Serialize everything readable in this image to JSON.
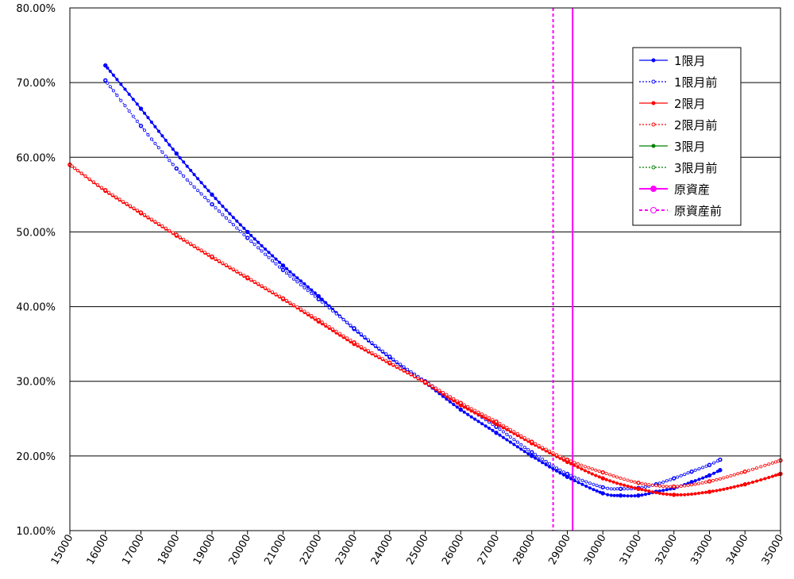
{
  "chart_data": {
    "type": "line",
    "xlim": [
      15000,
      35000
    ],
    "ylim": [
      0.1,
      0.8
    ],
    "x_ticks": [
      15000,
      16000,
      17000,
      18000,
      19000,
      20000,
      21000,
      22000,
      23000,
      24000,
      25000,
      26000,
      27000,
      28000,
      29000,
      30000,
      31000,
      32000,
      33000,
      34000,
      35000
    ],
    "y_ticks": [
      0.1,
      0.2,
      0.3,
      0.4,
      0.5,
      0.6,
      0.7,
      0.8
    ],
    "y_tick_labels": [
      "10.00%",
      "20.00%",
      "30.00%",
      "40.00%",
      "50.00%",
      "60.00%",
      "70.00%",
      "80.00%"
    ],
    "grid": "horizontal",
    "legend_position": "top-right",
    "series": [
      {
        "name": "1限月",
        "color": "#0000ff",
        "style": "solid-filled-marker",
        "x": [
          16000,
          17000,
          18000,
          19000,
          20000,
          21000,
          22000,
          23000,
          24000,
          25000,
          26000,
          27000,
          28000,
          29000,
          30000,
          30500,
          31000,
          31500,
          32000,
          32500,
          33000,
          33300
        ],
        "y": [
          0.723,
          0.665,
          0.605,
          0.55,
          0.5,
          0.455,
          0.414,
          0.37,
          0.332,
          0.298,
          0.262,
          0.231,
          0.2,
          0.172,
          0.15,
          0.147,
          0.147,
          0.152,
          0.157,
          0.165,
          0.174,
          0.181
        ]
      },
      {
        "name": "1限月前",
        "color": "#0000ff",
        "style": "dotted-open-marker",
        "x": [
          16000,
          17000,
          18000,
          19000,
          20000,
          21000,
          22000,
          23000,
          24000,
          25000,
          26000,
          27000,
          28000,
          29000,
          30000,
          30500,
          31000,
          31500,
          32000,
          32500,
          33000,
          33300
        ],
        "y": [
          0.703,
          0.642,
          0.585,
          0.537,
          0.492,
          0.449,
          0.41,
          0.371,
          0.333,
          0.3,
          0.27,
          0.239,
          0.205,
          0.176,
          0.158,
          0.156,
          0.157,
          0.162,
          0.17,
          0.179,
          0.188,
          0.195
        ]
      },
      {
        "name": "2限月",
        "color": "#ff0000",
        "style": "solid-filled-marker",
        "x": [
          15000,
          16000,
          17000,
          18000,
          19000,
          20000,
          21000,
          22000,
          23000,
          24000,
          25000,
          26000,
          27000,
          28000,
          29000,
          30000,
          31000,
          32000,
          33000,
          34000,
          35000
        ],
        "y": [
          0.59,
          0.555,
          0.525,
          0.495,
          0.466,
          0.438,
          0.41,
          0.38,
          0.35,
          0.324,
          0.298,
          0.268,
          0.243,
          0.217,
          0.192,
          0.17,
          0.156,
          0.148,
          0.152,
          0.162,
          0.176
        ]
      },
      {
        "name": "2限月前",
        "color": "#ff0000",
        "style": "dotted-open-marker",
        "x": [
          15000,
          16000,
          17000,
          18000,
          19000,
          20000,
          21000,
          22000,
          23000,
          24000,
          25000,
          26000,
          27000,
          28000,
          29000,
          30000,
          31000,
          32000,
          33000,
          34000,
          35000
        ],
        "y": [
          0.59,
          0.556,
          0.526,
          0.496,
          0.467,
          0.439,
          0.411,
          0.382,
          0.352,
          0.325,
          0.299,
          0.271,
          0.246,
          0.219,
          0.195,
          0.178,
          0.164,
          0.159,
          0.166,
          0.179,
          0.194
        ]
      },
      {
        "name": "3限月",
        "color": "#008000",
        "style": "solid-filled-marker",
        "x": [],
        "y": []
      },
      {
        "name": "3限月前",
        "color": "#008000",
        "style": "dotted-open-marker",
        "x": [],
        "y": []
      },
      {
        "name": "原資産",
        "color": "#ff00ff",
        "style": "vertical-solid",
        "x_value": 29150
      },
      {
        "name": "原資産前",
        "color": "#ff00ff",
        "style": "vertical-dashed",
        "x_value": 28600
      }
    ]
  }
}
